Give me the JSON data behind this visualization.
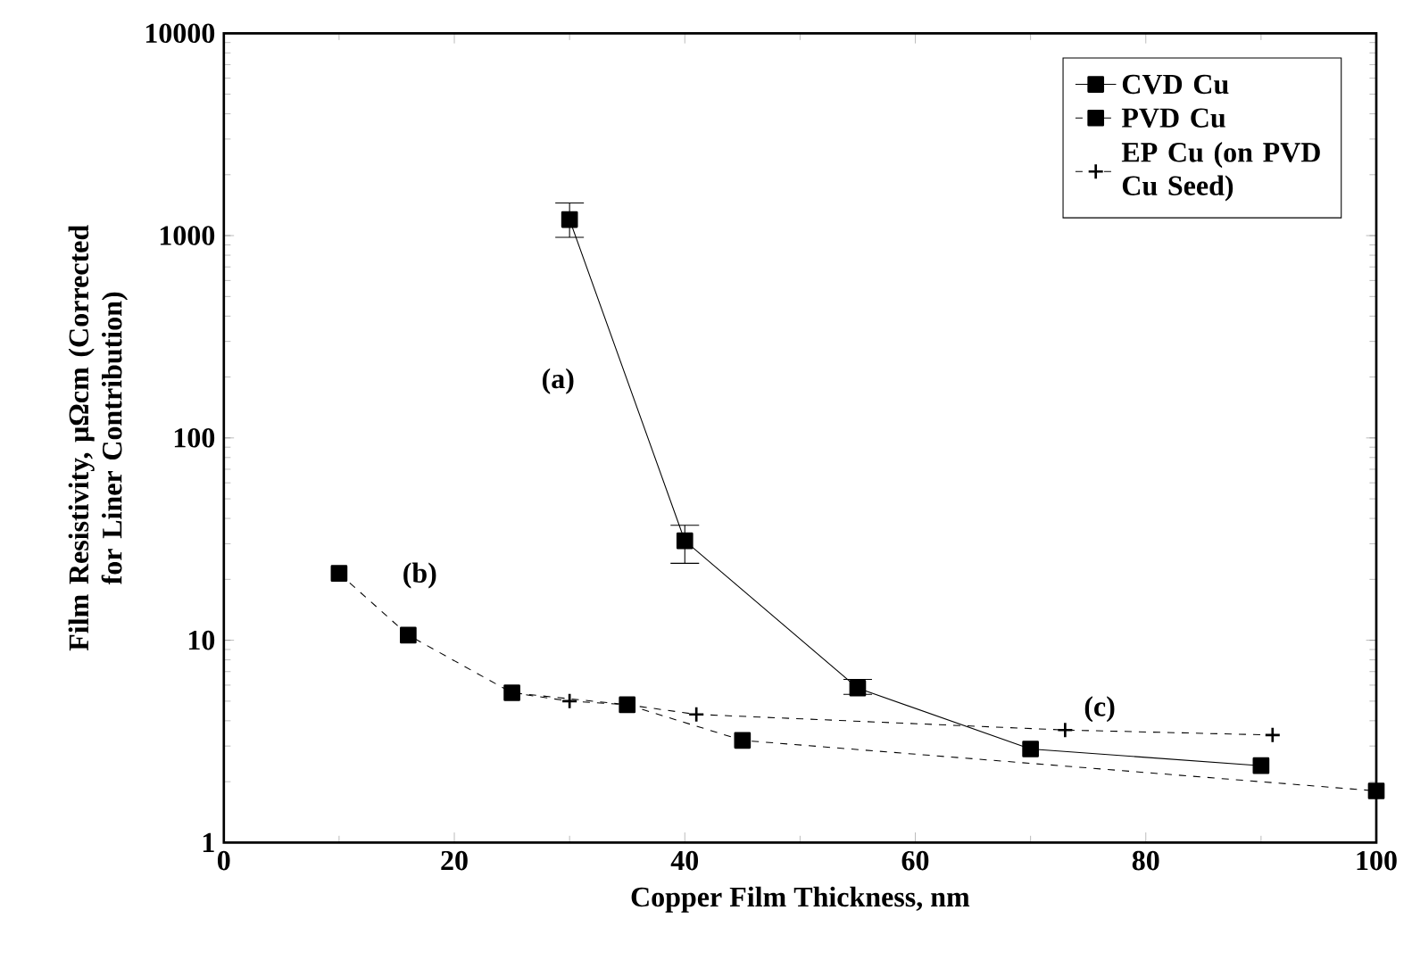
{
  "chart_data": {
    "type": "line",
    "xlabel": "Copper Film Thickness, nm",
    "ylabel": "Film Resistivity, μΩcm (Corrected for Liner Contribution)",
    "xlim": [
      0,
      100
    ],
    "xticks": [
      0,
      20,
      40,
      60,
      80,
      100
    ],
    "ylim": [
      1,
      10000
    ],
    "yticks": [
      1,
      10,
      100,
      1000,
      10000
    ],
    "log": "y",
    "legend": "top right",
    "grid": false,
    "series": [
      {
        "name": "CVD Cu",
        "color": "#000000",
        "marker": "square",
        "line_style": "solid",
        "x": [
          30,
          40,
          55,
          70,
          90
        ],
        "values": [
          1200,
          31,
          5.8,
          2.9,
          2.4
        ],
        "errors": [
          [
            980,
            1450
          ],
          [
            24,
            37
          ],
          [
            5.4,
            6.4
          ],
          null,
          null
        ]
      },
      {
        "name": "PVD Cu",
        "color": "#000000",
        "marker": "square",
        "line_style": "dashed",
        "x": [
          10,
          16,
          25,
          35,
          45,
          100
        ],
        "values": [
          21.4,
          10.6,
          5.5,
          4.8,
          3.2,
          1.8
        ]
      },
      {
        "name": "EP Cu (on PVD Cu Seed)",
        "color": "#000000",
        "marker": "cross",
        "line_style": "dashed",
        "x": [
          25,
          30,
          35,
          41,
          73,
          91
        ],
        "values": [
          5.5,
          5.0,
          4.8,
          4.3,
          3.6,
          3.4
        ]
      }
    ],
    "annotations": [
      "(a)",
      "(b)",
      "(c)"
    ]
  }
}
